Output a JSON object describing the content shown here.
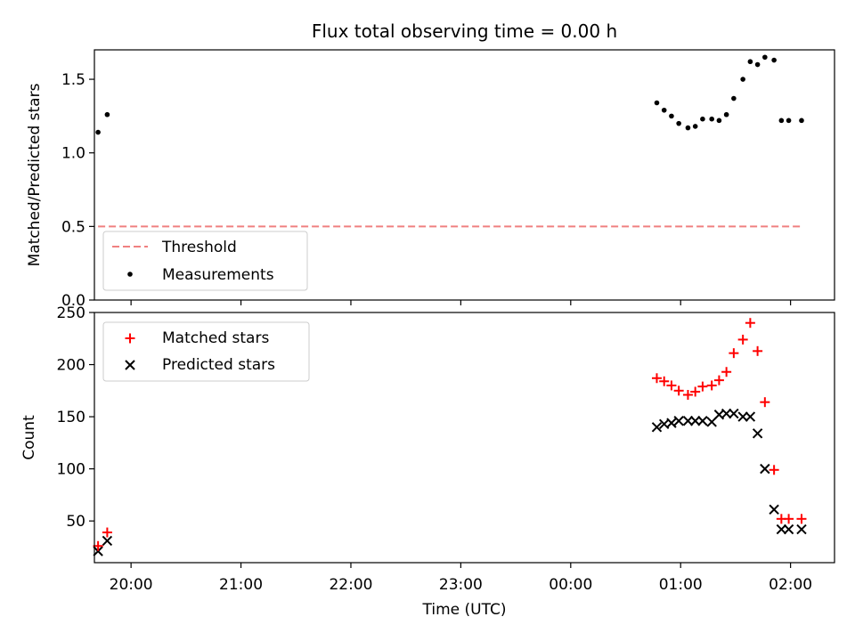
{
  "chart_data": [
    {
      "type": "scatter",
      "title": "Flux total observing time = 0.00 h",
      "xlabel": "",
      "ylabel": "Matched/Predicted stars",
      "ylim": [
        0,
        1.7
      ],
      "yticks": [
        0,
        0.5,
        1.0,
        1.5
      ],
      "ytick_labels": [
        "0.0",
        "0.5",
        "1.0",
        "1.5"
      ],
      "xlim": [
        "19:40",
        "02:24"
      ],
      "grid": false,
      "legend_position": "lower-left",
      "threshold": {
        "name": "Threshold",
        "value": 0.5,
        "x_start": "19:42",
        "x_end": "02:06",
        "color": "#f08080",
        "style": "dashed"
      },
      "series": [
        {
          "name": "Measurements",
          "marker": "dot",
          "color": "#000000",
          "x": [
            "19:42",
            "19:47",
            "00:47",
            "00:51",
            "00:55",
            "00:59",
            "01:04",
            "01:08",
            "01:12",
            "01:17",
            "01:21",
            "01:25",
            "01:29",
            "01:34",
            "01:38",
            "01:42",
            "01:46",
            "01:51",
            "01:55",
            "01:59",
            "02:06"
          ],
          "y": [
            1.14,
            1.26,
            1.34,
            1.29,
            1.25,
            1.2,
            1.17,
            1.18,
            1.23,
            1.23,
            1.22,
            1.26,
            1.37,
            1.5,
            1.62,
            1.6,
            1.65,
            1.63,
            1.22,
            1.22,
            1.22
          ]
        }
      ]
    },
    {
      "type": "scatter",
      "title": "",
      "xlabel": "Time (UTC)",
      "ylabel": "Count",
      "ylim": [
        10,
        250
      ],
      "yticks": [
        50,
        100,
        150,
        200,
        250
      ],
      "ytick_labels": [
        "50",
        "100",
        "150",
        "200",
        "250"
      ],
      "xlim": [
        "19:40",
        "02:24"
      ],
      "xticks": [
        "20:00",
        "21:00",
        "22:00",
        "23:00",
        "00:00",
        "01:00",
        "02:00"
      ],
      "grid": false,
      "legend_position": "upper-left",
      "series": [
        {
          "name": "Matched stars",
          "marker": "plus",
          "color": "#ff0000",
          "x": [
            "19:42",
            "19:47",
            "00:47",
            "00:51",
            "00:55",
            "00:59",
            "01:04",
            "01:08",
            "01:12",
            "01:17",
            "01:21",
            "01:25",
            "01:29",
            "01:34",
            "01:38",
            "01:42",
            "01:46",
            "01:51",
            "01:55",
            "01:59",
            "02:06"
          ],
          "y": [
            26,
            39,
            187,
            184,
            180,
            175,
            171,
            174,
            179,
            180,
            185,
            193,
            211,
            224,
            240,
            213,
            164,
            99,
            52,
            52,
            52
          ]
        },
        {
          "name": "Predicted stars",
          "marker": "x",
          "color": "#000000",
          "x": [
            "19:42",
            "19:47",
            "00:47",
            "00:51",
            "00:55",
            "00:59",
            "01:04",
            "01:08",
            "01:12",
            "01:17",
            "01:21",
            "01:25",
            "01:29",
            "01:34",
            "01:38",
            "01:42",
            "01:46",
            "01:51",
            "01:55",
            "01:59",
            "02:06"
          ],
          "y": [
            21,
            31,
            140,
            143,
            144,
            146,
            146,
            146,
            146,
            145,
            152,
            153,
            153,
            150,
            150,
            134,
            100,
            61,
            42,
            42,
            42
          ]
        }
      ]
    }
  ]
}
